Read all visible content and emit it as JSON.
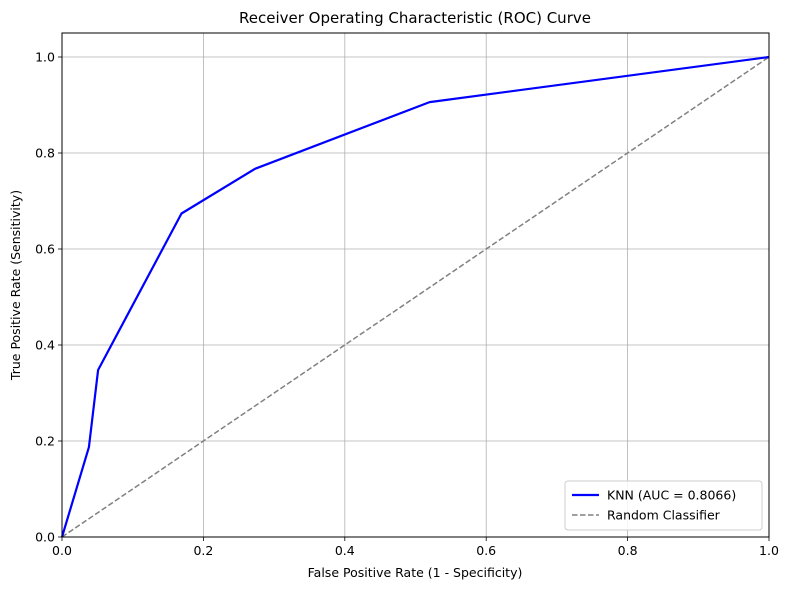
{
  "chart_data": {
    "type": "line",
    "title": "Receiver Operating Characteristic (ROC) Curve",
    "xlabel": "False Positive Rate (1 - Specificity)",
    "ylabel": "True Positive Rate (Sensitivity)",
    "xlim": [
      0,
      1
    ],
    "ylim": [
      0,
      1.05
    ],
    "xticks": [
      0,
      0.2,
      0.4,
      0.6,
      0.8,
      1.0
    ],
    "xtick_labels": [
      "0.0",
      "0.2",
      "0.4",
      "0.6",
      "0.8",
      "1.0"
    ],
    "yticks": [
      0,
      0.2,
      0.4,
      0.6,
      0.8,
      1.0
    ],
    "ytick_labels": [
      "0.0",
      "0.2",
      "0.4",
      "0.6",
      "0.8",
      "1.0"
    ],
    "grid": true,
    "legend_position": "lower-right",
    "series": [
      {
        "name": "KNN (AUC = 0.8066)",
        "color": "#0000ff",
        "style": "solid",
        "x": [
          0.0,
          0.038,
          0.051,
          0.169,
          0.273,
          0.52,
          1.0
        ],
        "y": [
          0.0,
          0.187,
          0.348,
          0.674,
          0.767,
          0.906,
          1.0
        ]
      },
      {
        "name": "Random Classifier",
        "color": "#808080",
        "style": "dashed",
        "x": [
          0.0,
          1.0
        ],
        "y": [
          0.0,
          1.0
        ]
      }
    ]
  }
}
